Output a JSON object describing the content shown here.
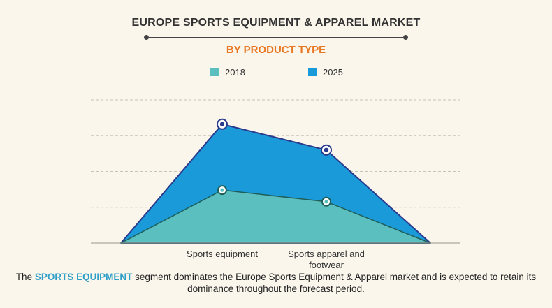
{
  "header": {
    "title": "EUROPE SPORTS EQUIPMENT & APPAREL MARKET",
    "subtitle": "BY PRODUCT TYPE"
  },
  "colors": {
    "series_2018": "#5bbfbf",
    "series_2025": "#1a9ad9",
    "outline_2025": "#2a3a8c",
    "outline_2018": "#1f5f5a",
    "subtitle": "#e87722",
    "highlight": "#2f9fc8"
  },
  "chart_data": {
    "type": "area",
    "categories": [
      "",
      "Sports equipment",
      "Sports apparel and footwear",
      ""
    ],
    "category_lines": [
      [],
      [
        "Sports equipment"
      ],
      [
        "Sports apparel and",
        "footwear"
      ],
      []
    ],
    "ylim": [
      0,
      100
    ],
    "grid": true,
    "legend_position": "top",
    "series": [
      {
        "name": "2018",
        "values": [
          0,
          41,
          32,
          0
        ]
      },
      {
        "name": "2025",
        "values": [
          0,
          92,
          72,
          0
        ]
      }
    ]
  },
  "caption": {
    "before": "The ",
    "highlight": "SPORTS EQUIPMENT",
    "after": " segment dominates the Europe Sports Equipment & Apparel market and is expected to retain its dominance throughout the forecast period."
  }
}
